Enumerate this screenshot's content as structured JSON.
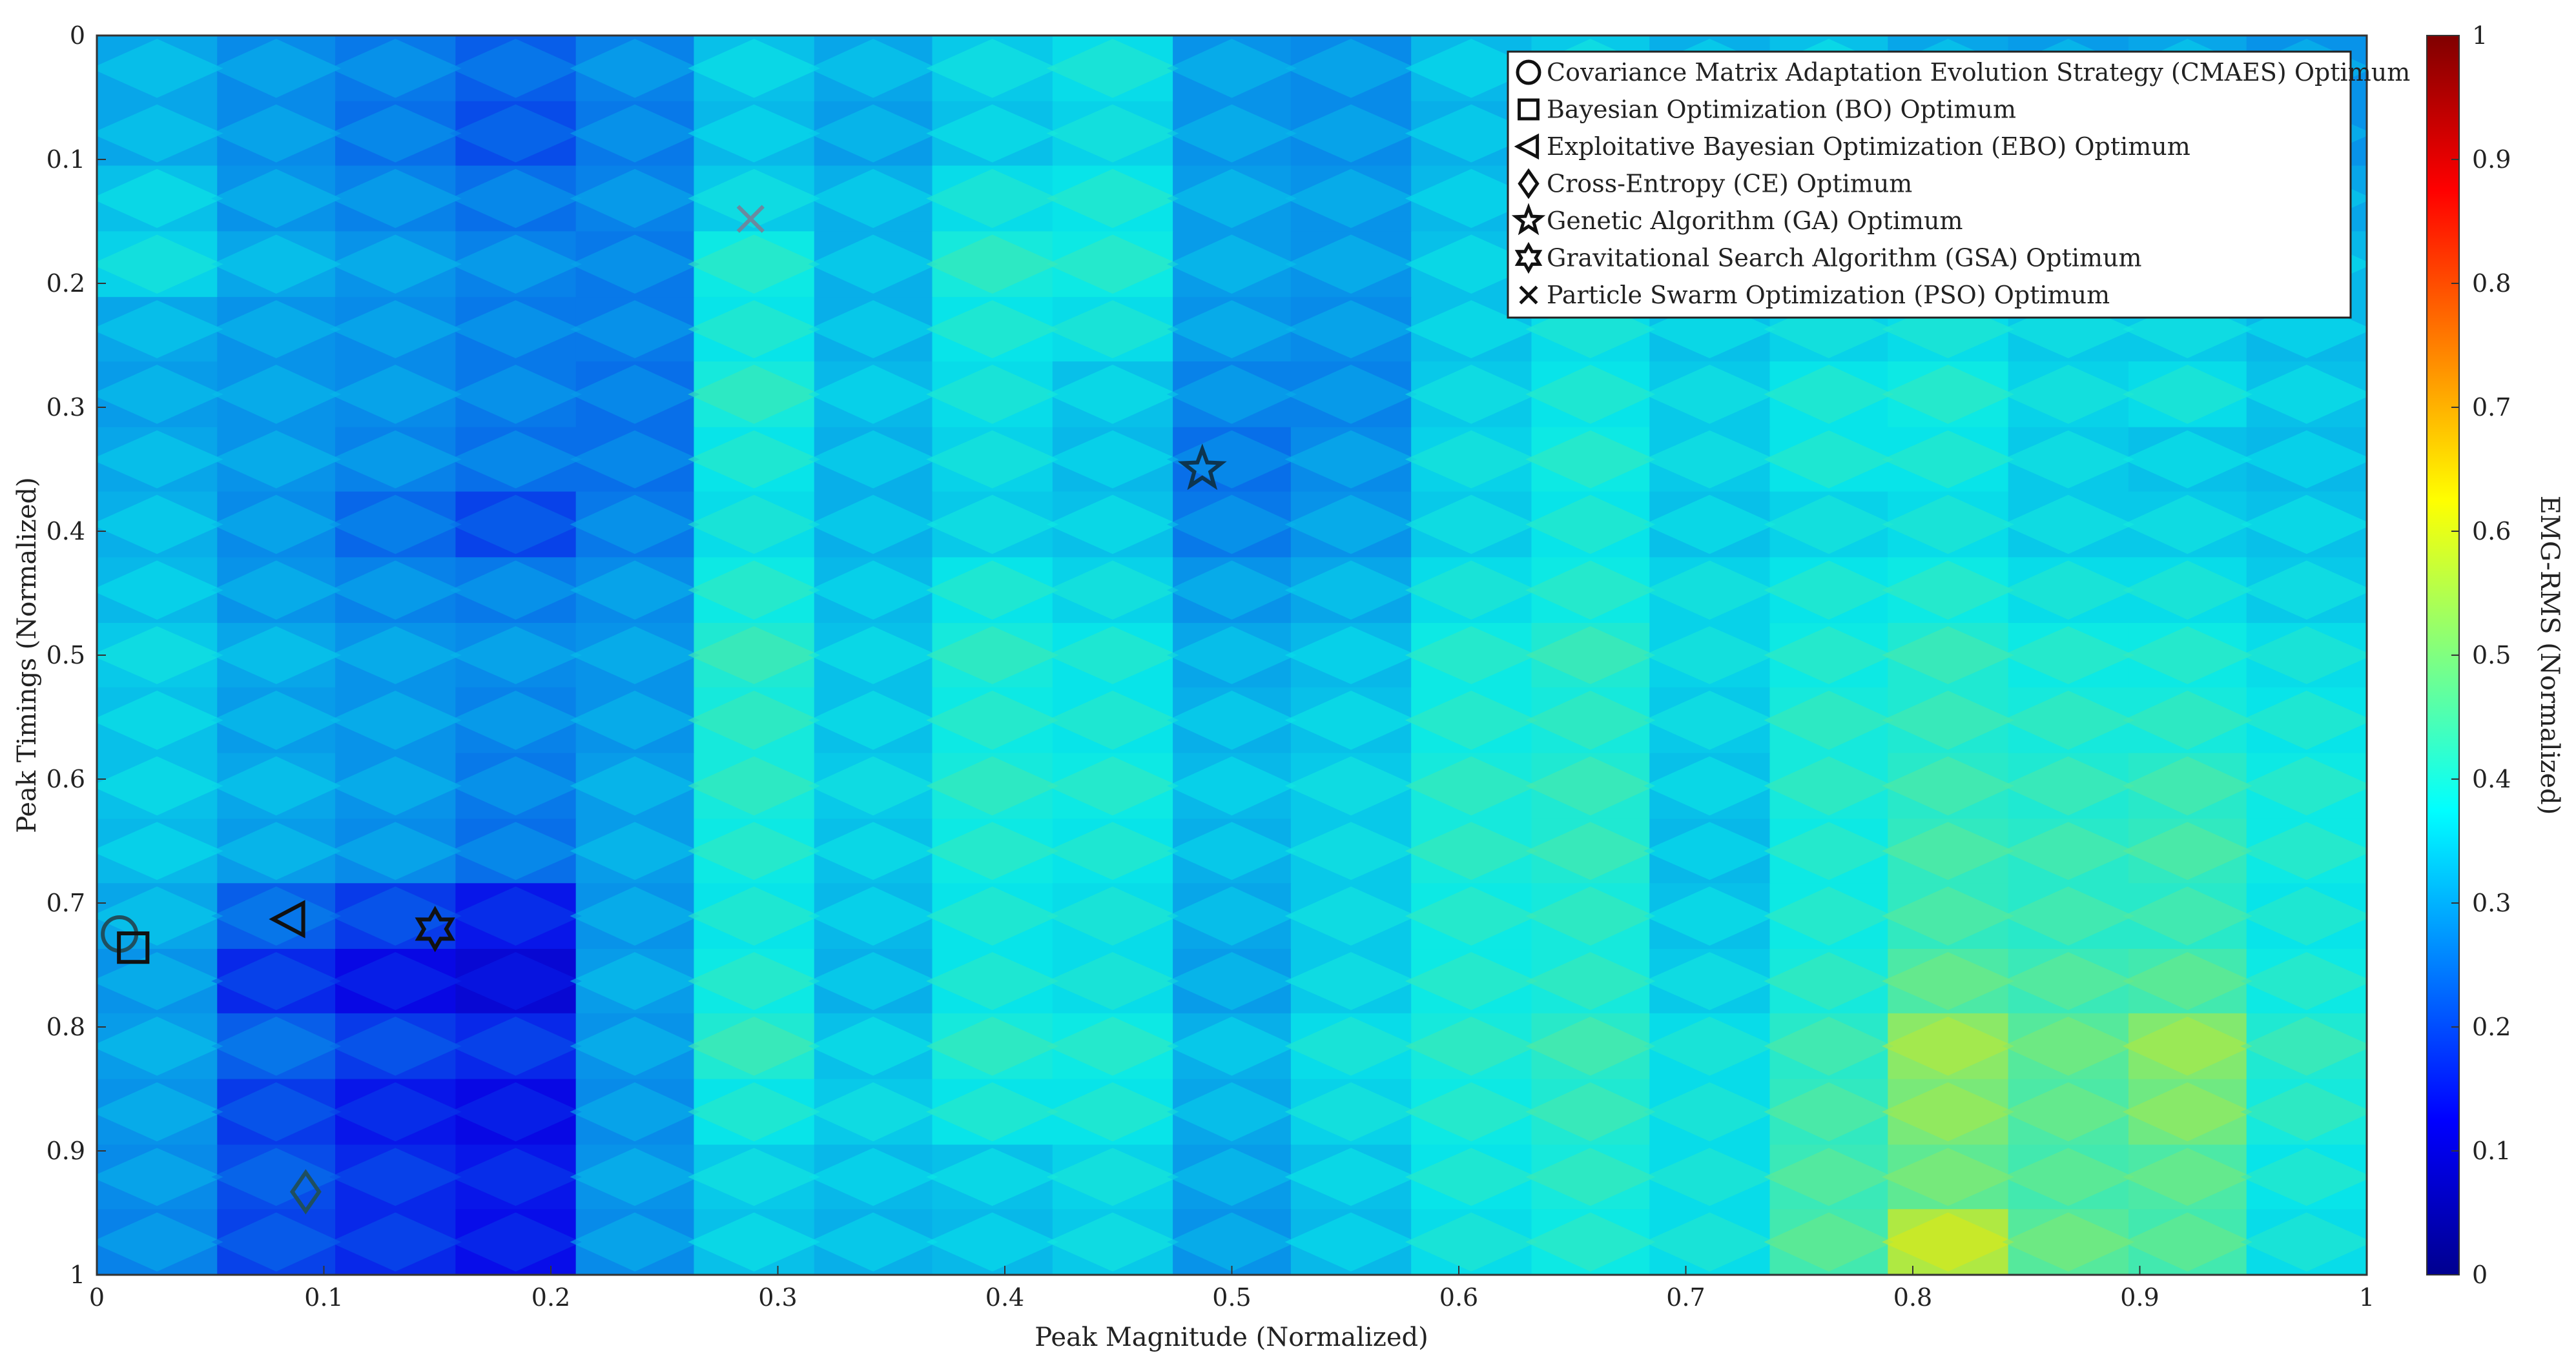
{
  "chart_data": {
    "type": "heatmap",
    "title": "",
    "xlabel": "Peak Magnitude (Normalized)",
    "ylabel": "Peak Timings (Normalized)",
    "xlim": [
      0,
      1
    ],
    "ylim": [
      0,
      1
    ],
    "y_reversed": true,
    "xticks": [
      "0",
      "0.1",
      "0.2",
      "0.3",
      "0.4",
      "0.5",
      "0.6",
      "0.7",
      "0.8",
      "0.9",
      "1"
    ],
    "yticks": [
      "0",
      "0.1",
      "0.2",
      "0.3",
      "0.4",
      "0.5",
      "0.6",
      "0.7",
      "0.8",
      "0.9",
      "1"
    ],
    "colorbar": {
      "label": "EMG-RMS (Normalized)",
      "range": [
        0,
        1
      ],
      "ticks": [
        "0",
        "0.1",
        "0.2",
        "0.3",
        "0.4",
        "0.5",
        "0.6",
        "0.7",
        "0.8",
        "0.9",
        "1"
      ],
      "colormap": "jet"
    },
    "x_edges": [
      0,
      0.053,
      0.105,
      0.158,
      0.211,
      0.263,
      0.316,
      0.368,
      0.421,
      0.474,
      0.526,
      0.579,
      0.632,
      0.684,
      0.737,
      0.789,
      0.842,
      0.895,
      0.947,
      1.0
    ],
    "y_edges": [
      0,
      0.053,
      0.105,
      0.158,
      0.211,
      0.263,
      0.316,
      0.368,
      0.421,
      0.474,
      0.526,
      0.579,
      0.632,
      0.684,
      0.737,
      0.789,
      0.842,
      0.895,
      0.947,
      1.0
    ],
    "z": [
      [
        0.3,
        0.27,
        0.25,
        0.22,
        0.26,
        0.33,
        0.3,
        0.34,
        0.36,
        0.28,
        0.27,
        0.32,
        0.34,
        0.31,
        0.33,
        0.3,
        0.29,
        0.3,
        0.28
      ],
      [
        0.3,
        0.27,
        0.24,
        0.2,
        0.25,
        0.32,
        0.29,
        0.33,
        0.35,
        0.28,
        0.27,
        0.31,
        0.33,
        0.31,
        0.32,
        0.3,
        0.29,
        0.3,
        0.28
      ],
      [
        0.33,
        0.28,
        0.26,
        0.24,
        0.26,
        0.34,
        0.31,
        0.36,
        0.37,
        0.29,
        0.28,
        0.32,
        0.35,
        0.33,
        0.34,
        0.32,
        0.31,
        0.31,
        0.3
      ],
      [
        0.35,
        0.3,
        0.28,
        0.26,
        0.25,
        0.38,
        0.31,
        0.39,
        0.38,
        0.29,
        0.28,
        0.33,
        0.36,
        0.34,
        0.36,
        0.34,
        0.33,
        0.33,
        0.32
      ],
      [
        0.3,
        0.28,
        0.27,
        0.25,
        0.25,
        0.37,
        0.31,
        0.37,
        0.36,
        0.28,
        0.27,
        0.33,
        0.36,
        0.33,
        0.35,
        0.36,
        0.34,
        0.34,
        0.32
      ],
      [
        0.29,
        0.28,
        0.27,
        0.25,
        0.24,
        0.39,
        0.32,
        0.36,
        0.33,
        0.26,
        0.26,
        0.34,
        0.37,
        0.34,
        0.37,
        0.38,
        0.35,
        0.36,
        0.33
      ],
      [
        0.3,
        0.28,
        0.26,
        0.24,
        0.24,
        0.37,
        0.31,
        0.35,
        0.32,
        0.24,
        0.27,
        0.35,
        0.38,
        0.34,
        0.37,
        0.37,
        0.34,
        0.33,
        0.32
      ],
      [
        0.31,
        0.27,
        0.23,
        0.19,
        0.25,
        0.36,
        0.31,
        0.34,
        0.33,
        0.25,
        0.28,
        0.34,
        0.37,
        0.33,
        0.35,
        0.36,
        0.34,
        0.34,
        0.33
      ],
      [
        0.32,
        0.28,
        0.26,
        0.25,
        0.27,
        0.38,
        0.32,
        0.37,
        0.35,
        0.28,
        0.3,
        0.36,
        0.38,
        0.35,
        0.37,
        0.38,
        0.36,
        0.36,
        0.34
      ],
      [
        0.34,
        0.3,
        0.28,
        0.27,
        0.28,
        0.4,
        0.33,
        0.39,
        0.37,
        0.3,
        0.32,
        0.38,
        0.4,
        0.35,
        0.38,
        0.4,
        0.38,
        0.38,
        0.36
      ],
      [
        0.33,
        0.29,
        0.28,
        0.26,
        0.28,
        0.39,
        0.33,
        0.38,
        0.37,
        0.31,
        0.33,
        0.38,
        0.39,
        0.34,
        0.39,
        0.4,
        0.39,
        0.39,
        0.37
      ],
      [
        0.33,
        0.3,
        0.28,
        0.25,
        0.29,
        0.39,
        0.34,
        0.39,
        0.38,
        0.32,
        0.34,
        0.39,
        0.4,
        0.33,
        0.39,
        0.41,
        0.4,
        0.41,
        0.38
      ],
      [
        0.32,
        0.29,
        0.27,
        0.24,
        0.29,
        0.38,
        0.33,
        0.38,
        0.37,
        0.31,
        0.34,
        0.39,
        0.4,
        0.32,
        0.38,
        0.42,
        0.41,
        0.42,
        0.38
      ],
      [
        0.3,
        0.22,
        0.18,
        0.14,
        0.28,
        0.37,
        0.32,
        0.37,
        0.36,
        0.3,
        0.34,
        0.38,
        0.39,
        0.33,
        0.38,
        0.42,
        0.41,
        0.41,
        0.37
      ],
      [
        0.28,
        0.16,
        0.12,
        0.1,
        0.29,
        0.38,
        0.31,
        0.37,
        0.36,
        0.29,
        0.34,
        0.38,
        0.39,
        0.34,
        0.39,
        0.45,
        0.43,
        0.44,
        0.38
      ],
      [
        0.29,
        0.22,
        0.18,
        0.16,
        0.28,
        0.4,
        0.33,
        0.39,
        0.38,
        0.31,
        0.36,
        0.39,
        0.41,
        0.36,
        0.41,
        0.52,
        0.46,
        0.51,
        0.4
      ],
      [
        0.28,
        0.18,
        0.14,
        0.12,
        0.27,
        0.37,
        0.34,
        0.37,
        0.37,
        0.3,
        0.35,
        0.38,
        0.4,
        0.36,
        0.42,
        0.5,
        0.45,
        0.49,
        0.39
      ],
      [
        0.27,
        0.2,
        0.16,
        0.14,
        0.28,
        0.34,
        0.32,
        0.33,
        0.35,
        0.29,
        0.33,
        0.37,
        0.39,
        0.36,
        0.43,
        0.47,
        0.44,
        0.45,
        0.37
      ],
      [
        0.26,
        0.19,
        0.16,
        0.13,
        0.27,
        0.33,
        0.31,
        0.32,
        0.34,
        0.28,
        0.32,
        0.36,
        0.38,
        0.36,
        0.44,
        0.56,
        0.46,
        0.44,
        0.36
      ]
    ],
    "series": [
      {
        "name": "Covariance Matrix Adaptation Evolution Strategy (CMAES) Optimum",
        "marker": "circle",
        "x": 0.01,
        "y": 0.725
      },
      {
        "name": "Bayesian Optimization (BO) Optimum",
        "marker": "square",
        "x": 0.016,
        "y": 0.736
      },
      {
        "name": "Exploitative Bayesian Optimization (EBO) Optimum",
        "marker": "triangle-left",
        "x": 0.085,
        "y": 0.713
      },
      {
        "name": "Cross-Entropy (CE) Optimum",
        "marker": "diamond",
        "x": 0.092,
        "y": 0.933
      },
      {
        "name": "Genetic Algorithm (GA) Optimum",
        "marker": "pentagram",
        "x": 0.487,
        "y": 0.35
      },
      {
        "name": "Gravitational Search Algorithm (GSA) Optimum",
        "marker": "hexagram",
        "x": 0.149,
        "y": 0.721
      },
      {
        "name": "Particle Swarm Optimization (PSO) Optimum",
        "marker": "x",
        "x": 0.288,
        "y": 0.148
      }
    ],
    "legend_position": "top-right"
  }
}
